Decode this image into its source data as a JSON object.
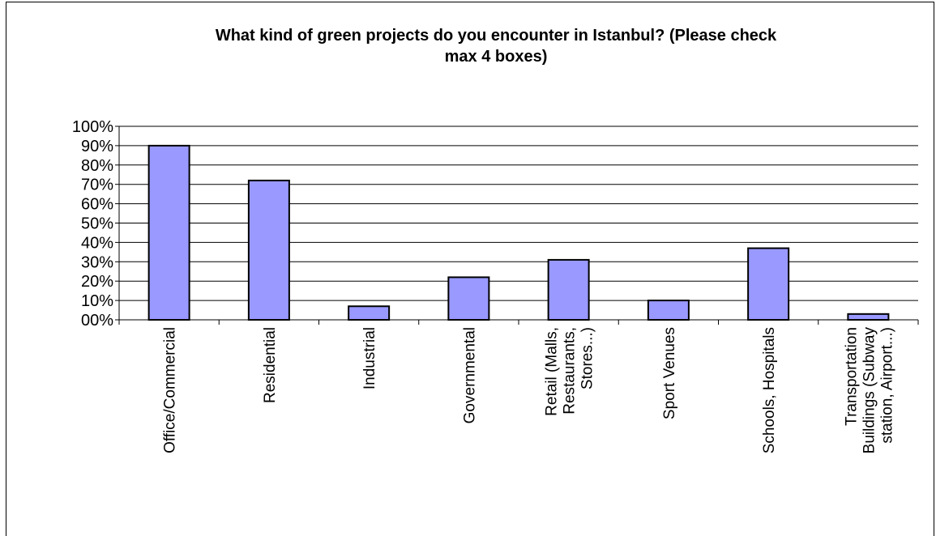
{
  "chart_data": {
    "type": "bar",
    "title_lines": [
      "What kind of green projects do you encounter in Istanbul? (Please check",
      "max 4 boxes)"
    ],
    "categories": [
      [
        "Office/Commercial"
      ],
      [
        "Residential"
      ],
      [
        "Industrial"
      ],
      [
        "Governmental"
      ],
      [
        "Retail (Malls,",
        "Restaurants,",
        "Stores...)"
      ],
      [
        "Sport Venues"
      ],
      [
        "Schools, Hospitals"
      ],
      [
        "Transportation",
        "Buildings (Subway",
        "station, Airport...)"
      ]
    ],
    "values": [
      0.9,
      0.72,
      0.07,
      0.22,
      0.31,
      0.1,
      0.37,
      0.03
    ],
    "y_ticks": [
      "00%",
      "10%",
      "20%",
      "30%",
      "40%",
      "50%",
      "60%",
      "70%",
      "80%",
      "90%",
      "100%"
    ],
    "ylim": [
      0,
      1
    ],
    "xlabel": "",
    "ylabel": "",
    "grid": true,
    "bar_color": "#9999ff",
    "bar_edge_color": "#000000"
  }
}
